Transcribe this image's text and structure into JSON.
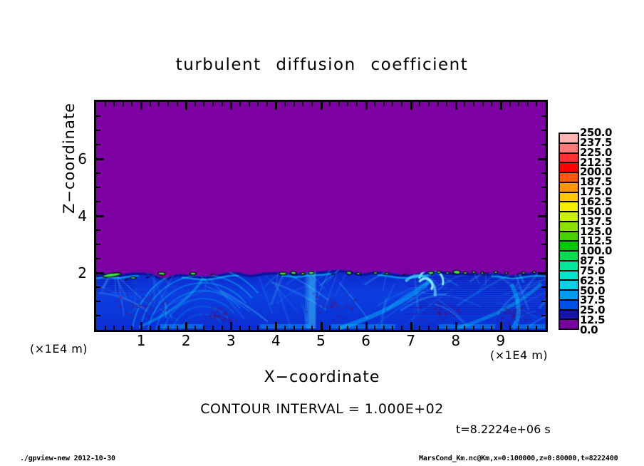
{
  "title": "turbulent diffusion coefficient",
  "axes": {
    "x": {
      "label": "X−coordinate",
      "unit": "(×1E4 m)",
      "tick_labels": [
        "1",
        "2",
        "3",
        "4",
        "5",
        "6",
        "7",
        "8",
        "9"
      ],
      "range": [
        0,
        10
      ],
      "minor_step": 0.2
    },
    "z": {
      "label": "Z−coordinate",
      "unit": "(×1E4 m)",
      "tick_labels": [
        "2",
        "4",
        "6"
      ],
      "tick_values": [
        2,
        4,
        6
      ],
      "range": [
        0,
        8
      ],
      "minor_step": 0.5
    }
  },
  "colorbar": {
    "labels": [
      "250.0",
      "237.5",
      "225.0",
      "212.5",
      "200.0",
      "187.5",
      "175.0",
      "162.5",
      "150.0",
      "137.5",
      "125.0",
      "112.5",
      "100.0",
      "87.5",
      "75.0",
      "62.5",
      "50.0",
      "37.5",
      "25.0",
      "12.5",
      "0.0"
    ],
    "colors_top_to_bottom": [
      "#ffb4b4",
      "#ff7878",
      "#ff3232",
      "#ff0000",
      "#ff5a00",
      "#ff9600",
      "#ffc800",
      "#f5f000",
      "#c8f000",
      "#8ce100",
      "#46d200",
      "#00c800",
      "#00dc50",
      "#00e69b",
      "#00e6cd",
      "#00d2e6",
      "#009bf0",
      "#0050e6",
      "#1414aa",
      "#7800a0"
    ]
  },
  "annotations": {
    "contour_interval": "CONTOUR INTERVAL = 1.000E+02",
    "time": "t=8.2224e+06 s"
  },
  "footer": {
    "left": "./gpview-new  2012-10-30",
    "right": "MarsCond_Km.nc@Km,x=0:100000,z=0:80000,t=8222400"
  },
  "colors": {
    "plot_background": "#7d00a2",
    "frame": "#000000",
    "turbulent_base": "#0b36d8",
    "contour_line": "#000000",
    "over_contour_fill": "#3ce04a"
  },
  "chart_data": {
    "type": "heatmap",
    "title": "turbulent diffusion coefficient",
    "xlabel": "X−coordinate (×1E4 m)",
    "ylabel": "Z−coordinate (×1E4 m)",
    "xlim_m": [
      0,
      100000
    ],
    "zlim_m": [
      0,
      80000
    ],
    "x_ticks": [
      1,
      2,
      3,
      4,
      5,
      6,
      7,
      8,
      9
    ],
    "z_ticks": [
      2,
      4,
      6
    ],
    "contour_interval": 100.0,
    "time_s": 8222400,
    "levels": [
      0,
      12.5,
      25,
      37.5,
      50,
      62.5,
      75,
      87.5,
      100,
      112.5,
      125,
      137.5,
      150,
      162.5,
      175,
      187.5,
      200,
      212.5,
      225,
      237.5,
      250
    ],
    "description": "Turbulent diffusion coefficient field: ~0 (purple) everywhere above z≈2×1E4 m; below that a turbulent boundary layer of values ~25–100 (blue–cyan filaments) with isolated patches exceeding 100 (green, enclosed by the 1.000E+02 black contour) concentrated at the layer top near z=2×1E4 m.",
    "coarse_grid": {
      "x_m": [
        5000,
        15000,
        25000,
        35000,
        45000,
        55000,
        65000,
        75000,
        85000,
        95000
      ],
      "z_m": [
        75000,
        65000,
        55000,
        45000,
        35000,
        25000,
        15000,
        5000
      ],
      "values": [
        [
          0,
          0,
          0,
          0,
          0,
          0,
          0,
          0,
          0,
          0
        ],
        [
          0,
          0,
          0,
          0,
          0,
          0,
          0,
          0,
          0,
          0
        ],
        [
          0,
          0,
          0,
          0,
          0,
          0,
          0,
          0,
          0,
          0
        ],
        [
          0,
          0,
          0,
          0,
          0,
          0,
          0,
          0,
          0,
          0
        ],
        [
          0,
          0,
          0,
          0,
          0,
          0,
          0,
          0,
          0,
          0
        ],
        [
          0,
          0,
          0,
          0,
          0,
          0,
          0,
          0,
          0,
          0
        ],
        [
          85,
          60,
          70,
          65,
          75,
          90,
          105,
          70,
          60,
          55
        ],
        [
          45,
          50,
          40,
          55,
          50,
          45,
          60,
          50,
          40,
          45
        ]
      ]
    }
  }
}
